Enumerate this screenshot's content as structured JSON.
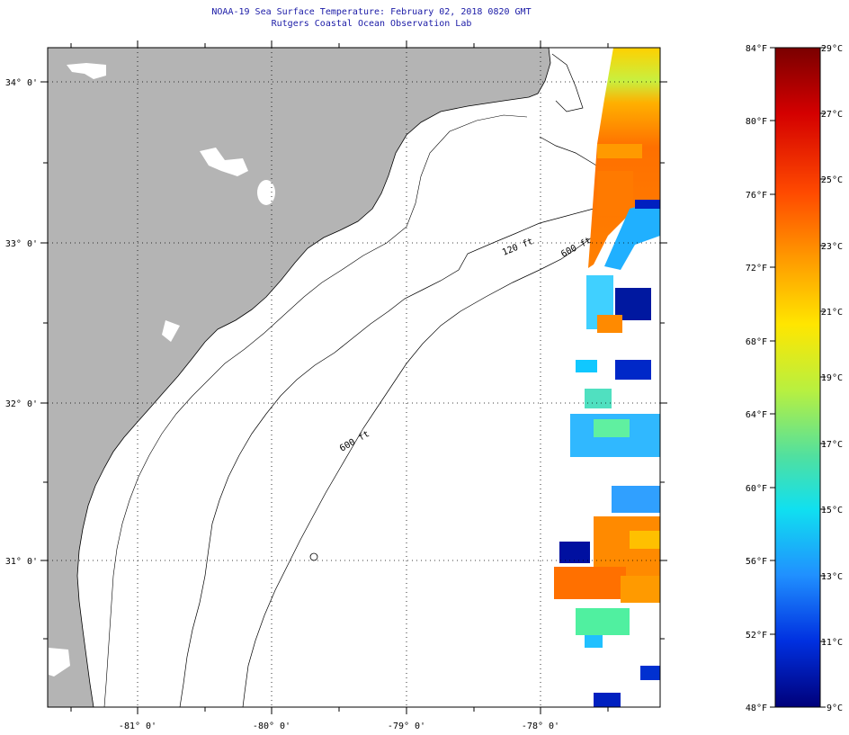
{
  "header": {
    "title": "NOAA-19 Sea Surface Temperature:  February 02, 2018 0820 GMT",
    "subtitle": "Rutgers Coastal Ocean Observation Lab"
  },
  "map": {
    "latitude_labels": [
      "34° 0'",
      "33° 0'",
      "32° 0'",
      "31° 0'"
    ],
    "longitude_labels": [
      "-81° 0'",
      "-80° 0'",
      "-79° 0'",
      "-78° 0'"
    ],
    "isobath_labels": [
      "120 ft",
      "600 ft",
      "600 ft"
    ],
    "colors": {
      "land": "#b4b4b4",
      "ocean": "#ffffff",
      "title_text": "#1a1aa6"
    }
  },
  "colorbar": {
    "fahrenheit_labels": [
      "84°F",
      "80°F",
      "76°F",
      "72°F",
      "68°F",
      "64°F",
      "60°F",
      "56°F",
      "52°F",
      "48°F"
    ],
    "celsius_labels": [
      "29°C",
      "27°C",
      "25°C",
      "23°C",
      "21°C",
      "19°C",
      "17°C",
      "15°C",
      "13°C",
      "11°C",
      "9°C"
    ],
    "stops": [
      "#7a0000",
      "#d40000",
      "#ff4a00",
      "#ff9a00",
      "#ffe600",
      "#b8f040",
      "#50e0a0",
      "#10e0f0",
      "#2090ff",
      "#0030e0",
      "#00007a"
    ]
  }
}
